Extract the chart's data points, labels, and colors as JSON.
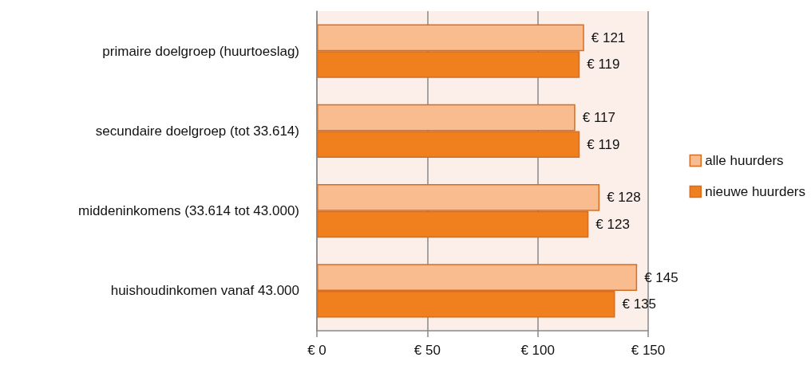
{
  "chart_data": {
    "type": "bar",
    "orientation": "horizontal",
    "categories": [
      "primaire doelgroep (huurtoeslag)",
      "secundaire doelgroep (tot 33.614)",
      "middeninkomens (33.614 tot 43.000)",
      "huishoudinkomen vanaf 43.000"
    ],
    "series": [
      {
        "name": "alle huurders",
        "color": "#f8bc8f",
        "values": [
          121,
          117,
          128,
          145
        ],
        "value_labels": [
          "€ 121",
          "€ 117",
          "€ 128",
          "€ 145"
        ]
      },
      {
        "name": "nieuwe huurders",
        "color": "#f07f1e",
        "values": [
          119,
          119,
          123,
          135
        ],
        "value_labels": [
          "€ 119",
          "€ 119",
          "€ 123",
          "€ 135"
        ]
      }
    ],
    "xlim": [
      0,
      150
    ],
    "xticks": [
      {
        "value": 0,
        "label": "€ 0"
      },
      {
        "value": 50,
        "label": "€ 50"
      },
      {
        "value": 100,
        "label": "€ 100"
      },
      {
        "value": 150,
        "label": "€ 150"
      }
    ],
    "grid": "x",
    "legend": "right"
  }
}
